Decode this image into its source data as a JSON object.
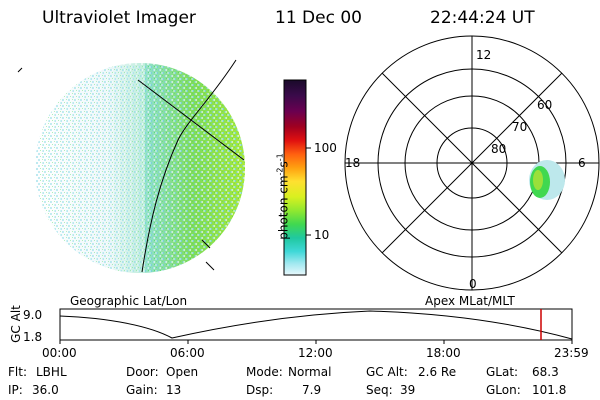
{
  "header": {
    "instrument": "Ultraviolet Imager",
    "date": "11 Dec 00",
    "time": "22:44:24 UT"
  },
  "colorbar": {
    "unit_label": "photon cm",
    "unit_sup1": "-2",
    "unit_mid": "s",
    "unit_sup2": "-1",
    "tick_high": "100",
    "tick_low": "10",
    "colors": [
      "#1a0a2a",
      "#3a0a4a",
      "#6a0050",
      "#a00020",
      "#e01010",
      "#ff6010",
      "#ffa010",
      "#ffe030",
      "#d8f020",
      "#90e830",
      "#40d850",
      "#20c8a0",
      "#40d8d8",
      "#a0e8f0",
      "#e8f8fc"
    ]
  },
  "left_panel": {
    "projection_label": "Geographic Lat/Lon"
  },
  "right_panel": {
    "projection_label": "Apex MLat/MLT",
    "mlt_labels": {
      "top": "12",
      "left": "18",
      "right": "6",
      "bottom": "0"
    },
    "lat_labels": [
      "60",
      "70",
      "80"
    ]
  },
  "altitude_plot": {
    "ylabel": "GC Alt",
    "ymax_label": "9.0",
    "ymin_label": "1.8",
    "time_ticks": [
      "00:00",
      "06:00",
      "12:00",
      "18:00",
      "23:59"
    ],
    "marker_color": "#cc0000"
  },
  "info": {
    "row1": {
      "flt_label": "Flt:",
      "flt_value": "LBHL",
      "door_label": "Door:",
      "door_value": "Open",
      "mode_label": "Mode:",
      "mode_value": "Normal",
      "gcalt_label": "GC Alt:",
      "gcalt_value": "2.6 Re",
      "glat_label": "GLat:",
      "glat_value": "68.3"
    },
    "row2": {
      "ip_label": "IP:",
      "ip_value": "36.0",
      "gain_label": "Gain:",
      "gain_value": "13",
      "dsp_label": "Dsp:",
      "dsp_value": "7.9",
      "seq_label": "Seq:",
      "seq_value": "39",
      "glon_label": "GLon:",
      "glon_value": "101.8"
    }
  }
}
